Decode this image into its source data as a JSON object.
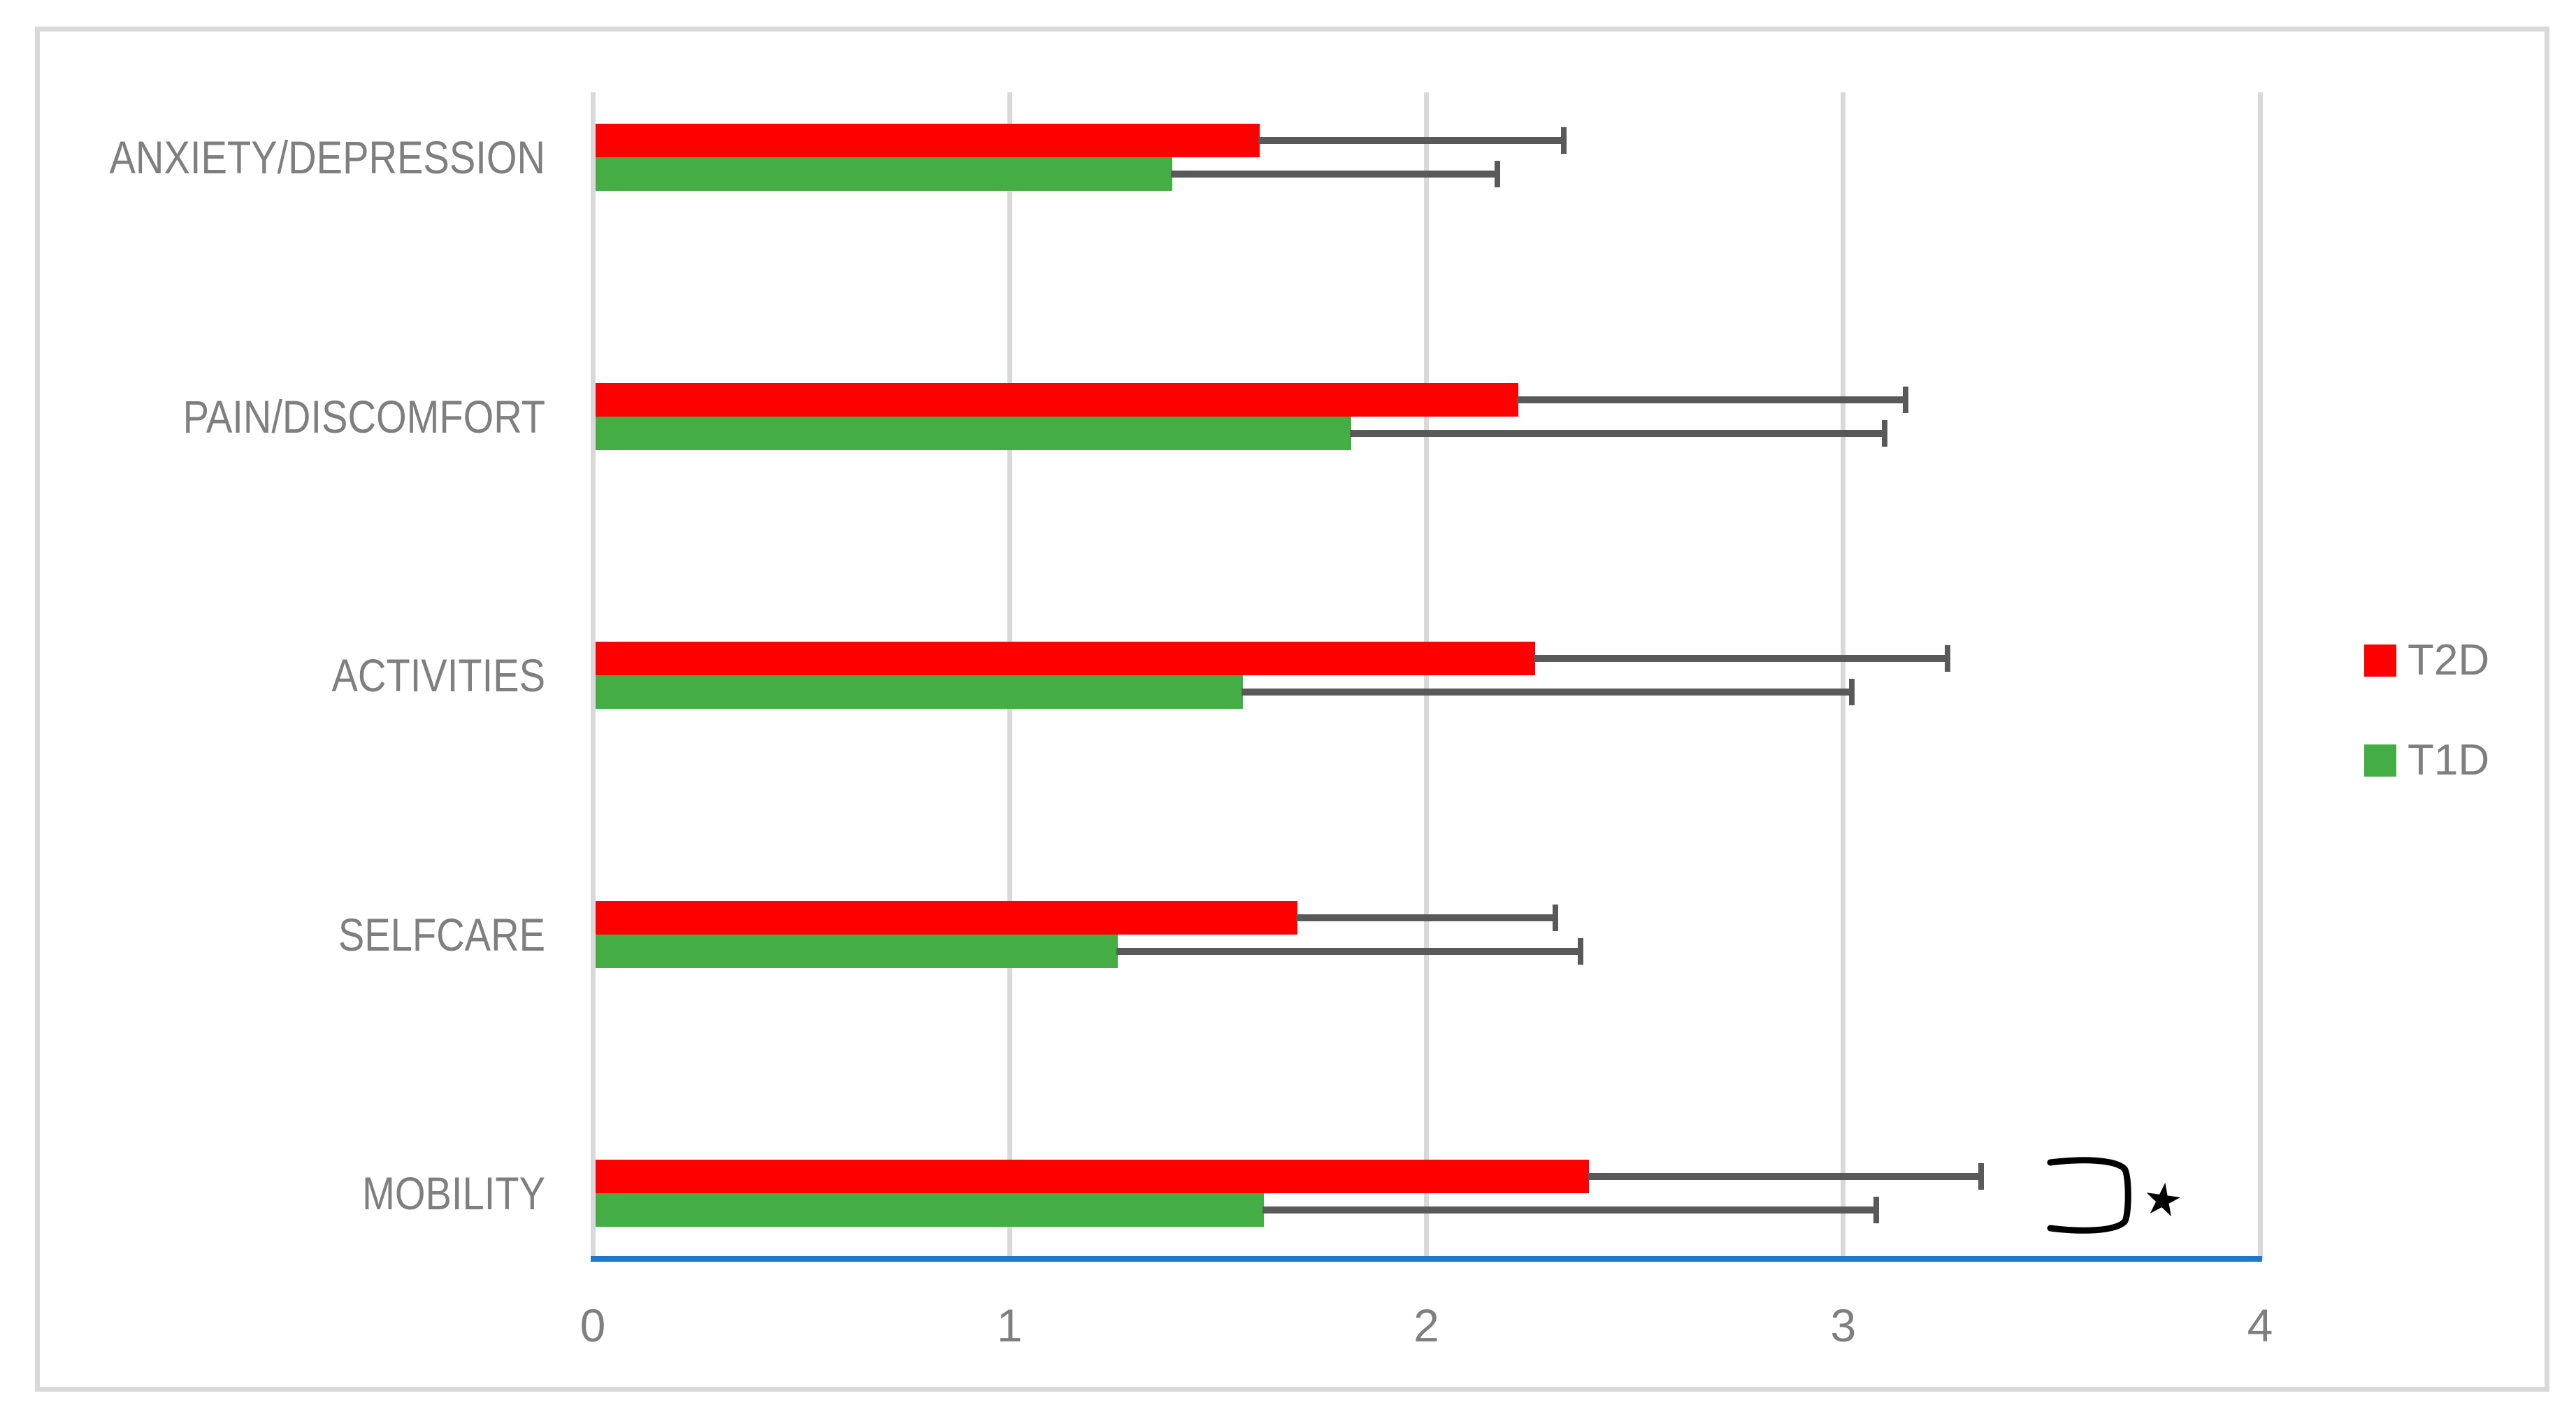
{
  "chart_data": {
    "type": "bar",
    "orientation": "horizontal",
    "title": "",
    "categories": [
      "ANXIETY/DEPRESSION",
      "PAIN/DISCOMFORT",
      "ACTIVITIES",
      "SELFCARE",
      "MOBILITY"
    ],
    "series": [
      {
        "name": "T2D",
        "color": "#FF0000",
        "values": [
          1.6,
          2.22,
          2.26,
          1.69,
          2.39
        ],
        "error_high": [
          2.33,
          3.15,
          3.25,
          2.31,
          3.33
        ]
      },
      {
        "name": "T1D",
        "color": "#44AD43",
        "values": [
          1.39,
          1.82,
          1.56,
          1.26,
          1.61
        ],
        "error_high": [
          2.17,
          3.1,
          3.02,
          2.37,
          3.08
        ]
      }
    ],
    "xlim": [
      0,
      4
    ],
    "x_ticks": [
      "0",
      "1",
      "2",
      "3",
      "4"
    ],
    "grid": "vertical-gridlines-on",
    "legend_position": "right-middle",
    "annotations": [
      {
        "target": "MOBILITY",
        "type": "bracket-with-star",
        "symbol": "★"
      }
    ]
  },
  "legend": {
    "items": [
      {
        "label": "T2D",
        "color": "#FF0000"
      },
      {
        "label": "T1D",
        "color": "#44AD43"
      }
    ]
  },
  "colors": {
    "series_t2d": "#FF0000",
    "series_t1d": "#44AD43",
    "error_bar": "#595959",
    "gridline": "#D9D9D9",
    "baseline_blue": "#2277C8",
    "text_gray": "#7F7F7F",
    "frame_border": "#D9D9D9",
    "annotation": "#000000"
  }
}
